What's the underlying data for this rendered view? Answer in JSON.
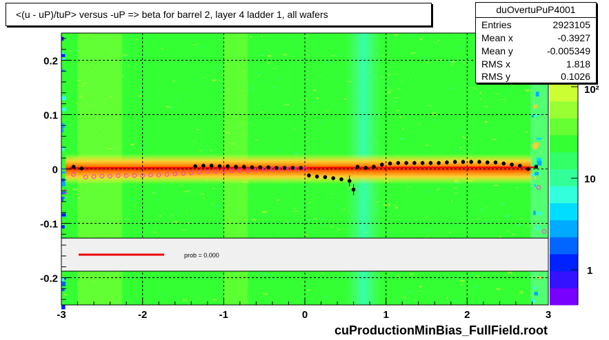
{
  "title": "<(u - uP)/tuP> versus  -uP => beta for barrel 2, layer 4 ladder 1, all wafers",
  "stats": {
    "name": "duOvertuPuP4001",
    "rows": [
      {
        "label": "Entries",
        "value": "2923105"
      },
      {
        "label": "Mean x",
        "value": "-0.3927"
      },
      {
        "label": "Mean y",
        "value": "-0.005349"
      },
      {
        "label": "RMS x",
        "value": "1.818"
      },
      {
        "label": "RMS y",
        "value": "0.1026"
      }
    ]
  },
  "footer": "cuProductionMinBias_FullField.root",
  "colors": {
    "background_green": "#33ff33",
    "band_red": "#ff0000",
    "band_orange": "#ff8800",
    "cyan_stripe": "#33ffcc",
    "profile_black": "#000000",
    "profile_magenta": "#ff33cc",
    "fit_line": "#ee0000"
  },
  "chart_data": {
    "type": "heatmap",
    "title": "<(u - uP)/tuP> versus  -uP => beta for barrel 2, layer 4 ladder 1, all wafers",
    "xlim": [
      -3,
      3
    ],
    "ylim": [
      -0.25,
      0.25
    ],
    "x_ticks": [
      "-3",
      "-2",
      "-1",
      "0",
      "1",
      "2",
      "3"
    ],
    "y_ticks": [
      "-0.2",
      "-0.1",
      "0",
      "0.1",
      "0.2"
    ],
    "grid": true,
    "color_scale": {
      "log": true,
      "tick_labels": [
        "1",
        "10",
        "10²"
      ],
      "colors": [
        "#7700ff",
        "#3311ff",
        "#0022ff",
        "#0066ff",
        "#00aaff",
        "#00ddff",
        "#33ffdd",
        "#33ff99",
        "#33ff66",
        "#33ff33",
        "#66ff33",
        "#99ff33",
        "#ccff33",
        "#ffff33",
        "#ffcc33",
        "#ff9933"
      ]
    },
    "profile_black": {
      "x": [
        -2.85,
        -2.75,
        -1.35,
        -1.25,
        -1.15,
        -1.05,
        -0.95,
        -0.85,
        -0.75,
        -0.65,
        -0.55,
        -0.45,
        -0.35,
        -0.25,
        -0.15,
        -0.05,
        0.05,
        0.15,
        0.25,
        0.35,
        0.45,
        0.55,
        0.6,
        0.65,
        0.75,
        0.85,
        0.95,
        1.05,
        1.15,
        1.25,
        1.35,
        1.45,
        1.55,
        1.65,
        1.75,
        1.85,
        1.95,
        2.05,
        2.15,
        2.25,
        2.35,
        2.45,
        2.55,
        2.65,
        2.75,
        2.85
      ],
      "y": [
        0.004,
        0.001,
        0.005,
        0.006,
        0.006,
        0.005,
        0.005,
        0.004,
        0.004,
        0.003,
        0.003,
        0.003,
        0.002,
        0.002,
        0.002,
        0.002,
        -0.012,
        -0.014,
        -0.015,
        -0.017,
        -0.019,
        -0.022,
        -0.038,
        0.004,
        0.002,
        0.004,
        0.008,
        0.01,
        0.011,
        0.011,
        0.011,
        0.011,
        0.011,
        0.011,
        0.012,
        0.013,
        0.013,
        0.013,
        0.013,
        0.012,
        0.012,
        0.01,
        0.008,
        0.006,
        0.0,
        0.004
      ]
    },
    "profile_magenta": {
      "x": [
        -2.95,
        -2.85,
        -2.7,
        -2.6,
        -2.5,
        -2.4,
        -2.3,
        -2.2,
        -2.1,
        -2.0,
        -1.9,
        -1.8,
        -1.7,
        -1.6,
        -1.5,
        -1.4,
        -1.3,
        -1.2,
        -1.1,
        -1.0,
        -0.9,
        -0.8,
        -0.7,
        -0.6,
        -0.5,
        -0.4,
        -0.3,
        -0.2,
        -0.1,
        0.0,
        2.88,
        2.95
      ],
      "y": [
        -0.042,
        -0.01,
        -0.015,
        -0.014,
        -0.013,
        -0.013,
        -0.012,
        -0.012,
        -0.012,
        -0.012,
        -0.011,
        -0.011,
        -0.01,
        -0.009,
        -0.008,
        -0.007,
        -0.006,
        -0.005,
        -0.004,
        -0.004,
        -0.003,
        -0.003,
        -0.003,
        -0.002,
        -0.001,
        -0.001,
        0.0,
        0.0,
        0.0,
        0.0,
        -0.034,
        -0.115
      ]
    },
    "fit": {
      "label": "prob = 0.000"
    }
  }
}
